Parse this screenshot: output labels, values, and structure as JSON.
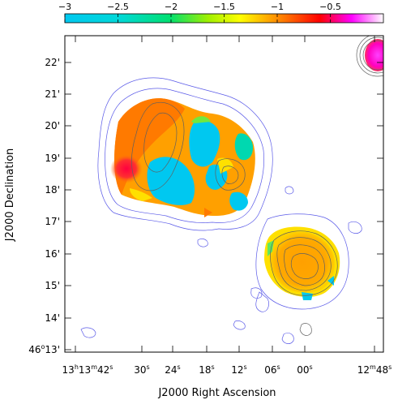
{
  "chart_data": {
    "type": "heatmap",
    "title": "",
    "colorbar": {
      "ticks": [
        "−3",
        "−2.5",
        "−2",
        "−1.5",
        "−1",
        "−0.5"
      ],
      "tick_values": [
        -3,
        -2.5,
        -2,
        -1.5,
        -1,
        -0.5
      ],
      "range": [
        -3.0,
        0.0
      ],
      "colors": [
        "#00c8f0",
        "#00e0a0",
        "#80f000",
        "#ffff00",
        "#ff8000",
        "#ff0000",
        "#ff00ff",
        "#ffffff"
      ]
    },
    "xlabel": "J2000 Right Ascension",
    "ylabel": "J2000 Declination",
    "x_ticks": [
      {
        "hm": "13",
        "hm2": "13",
        "m": "42"
      },
      {
        "s": "30"
      },
      {
        "s": "24"
      },
      {
        "s": "18"
      },
      {
        "s": "12"
      },
      {
        "s": "06"
      },
      {
        "s": "00"
      },
      {
        "hm2": "12",
        "m": "48"
      }
    ],
    "y_ticks": [
      "22'",
      "21'",
      "20'",
      "19'",
      "18'",
      "17'",
      "16'",
      "15'",
      "14'"
    ],
    "y_origin": {
      "deg": "46",
      "arcmin": "13'"
    },
    "regions": [
      {
        "name": "large-lobe",
        "typical_value": -1.0
      },
      {
        "name": "southeast-source",
        "typical_value": -0.8
      },
      {
        "name": "corner-source",
        "typical_value": -0.3
      }
    ],
    "contour_colors": {
      "radio": "#5a5ae8",
      "optical": "#606060"
    }
  }
}
